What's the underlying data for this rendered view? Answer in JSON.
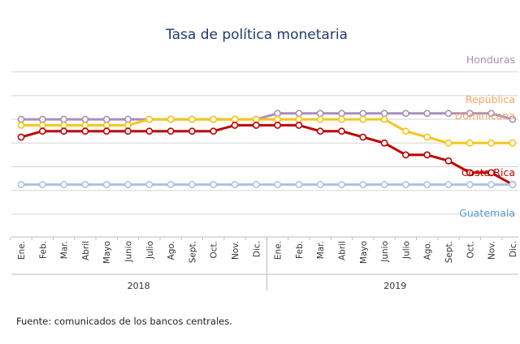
{
  "chart_data": {
    "type": "line",
    "title": "Tasa de política monetaria",
    "categories": [
      "Ene.",
      "Feb.",
      "Mar.",
      "Abril",
      "Mayo",
      "Junio",
      "Julio",
      "Ago.",
      "Sept.",
      "Oct.",
      "Nov.",
      "Dic.",
      "Ene.",
      "Feb.",
      "Mar.",
      "Abril",
      "Mayo",
      "Junio",
      "Julio",
      "Ago.",
      "Sept.",
      "Oct.",
      "Nov.",
      "Dic."
    ],
    "years": [
      {
        "label": "2018",
        "start": 0,
        "end": 11
      },
      {
        "label": "2019",
        "start": 12,
        "end": 23
      }
    ],
    "ylim": [
      1.5,
      8.0
    ],
    "grid": true,
    "series": [
      {
        "name": "Honduras",
        "label_lines": [
          "Honduras"
        ],
        "color": "#a78fbf",
        "values": [
          5.5,
          5.5,
          5.5,
          5.5,
          5.5,
          5.5,
          5.5,
          5.5,
          5.5,
          5.5,
          5.5,
          5.5,
          5.75,
          5.75,
          5.75,
          5.75,
          5.75,
          5.75,
          5.75,
          5.75,
          5.75,
          5.75,
          5.75,
          5.5
        ]
      },
      {
        "name": "República Dominicana",
        "label_lines": [
          "República",
          "Dominicana"
        ],
        "color": "#f5c518",
        "label_color": "#f4a460",
        "values": [
          5.25,
          5.25,
          5.25,
          5.25,
          5.25,
          5.25,
          5.5,
          5.5,
          5.5,
          5.5,
          5.5,
          5.5,
          5.5,
          5.5,
          5.5,
          5.5,
          5.5,
          5.5,
          5.0,
          4.75,
          4.5,
          4.5,
          4.5,
          4.5
        ]
      },
      {
        "name": "Costa Rica",
        "label_lines": [
          "Costa Rica"
        ],
        "color": "#c00000",
        "values": [
          4.75,
          5.0,
          5.0,
          5.0,
          5.0,
          5.0,
          5.0,
          5.0,
          5.0,
          5.0,
          5.25,
          5.25,
          5.25,
          5.25,
          5.0,
          5.0,
          4.75,
          4.5,
          4.0,
          4.0,
          3.75,
          3.25,
          3.25,
          2.75
        ]
      },
      {
        "name": "Guatemala",
        "label_lines": [
          "Guatemala"
        ],
        "color": "#a9c4e6",
        "label_color": "#5b9bd5",
        "values": [
          2.75,
          2.75,
          2.75,
          2.75,
          2.75,
          2.75,
          2.75,
          2.75,
          2.75,
          2.75,
          2.75,
          2.75,
          2.75,
          2.75,
          2.75,
          2.75,
          2.75,
          2.75,
          2.75,
          2.75,
          2.75,
          2.75,
          2.75,
          2.75
        ]
      }
    ]
  },
  "footer": {
    "source": "Fuente: comunicados de los bancos centrales."
  }
}
